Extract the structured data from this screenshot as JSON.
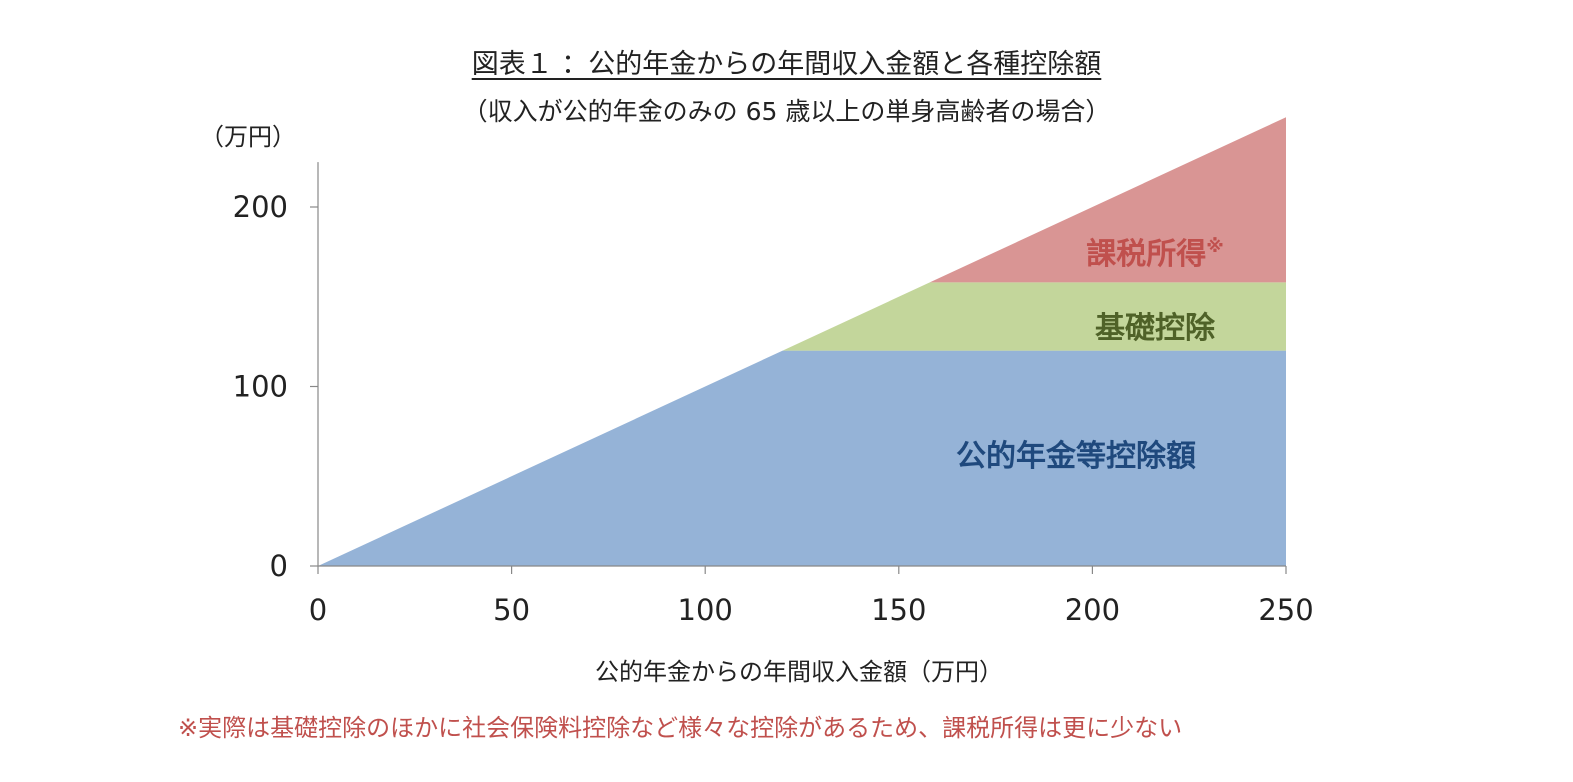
{
  "chart_data": {
    "type": "area",
    "title": "図表１ ：公的年金からの年間収入金額と各種控除額",
    "subtitle": "（収入が公的年金のみの 65 歳以上の単身高齢者の場合）",
    "ylabel": "（万円）",
    "xlabel": "公的年金からの年間収入金額（万円）",
    "xlim": [
      0,
      250
    ],
    "ylim": [
      0,
      225
    ],
    "xticks": [
      0,
      50,
      100,
      150,
      200,
      250
    ],
    "yticks": [
      0,
      100,
      200
    ],
    "grid": false,
    "legend": "none",
    "x": [
      0,
      120,
      158,
      250
    ],
    "series": [
      {
        "name": "公的年金等控除額",
        "color": "#95b3d7",
        "label_color": "#1f497d",
        "values": [
          0,
          120,
          120,
          120
        ]
      },
      {
        "name": "基礎控除",
        "color": "#c3d69b",
        "label_color": "#4f6228",
        "values": [
          0,
          0,
          38,
          38
        ]
      },
      {
        "name": "課税所得",
        "name_mark": "※",
        "color": "#d99594",
        "label_color": "#c0504d",
        "values": [
          0,
          0,
          0,
          92
        ]
      }
    ],
    "footnote": "※実際は基礎控除のほかに社会保険料控除など様々な控除があるため、課税所得は更に少ない"
  }
}
